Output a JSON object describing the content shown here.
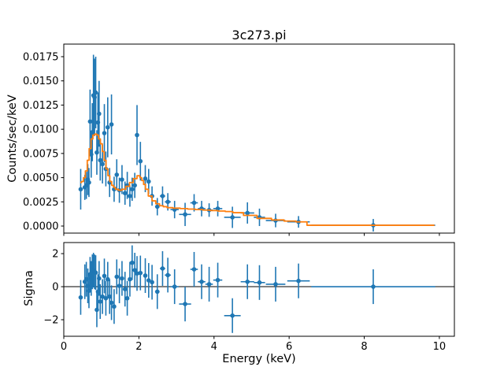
{
  "figure": {
    "title": "3c273.pi",
    "background": "#ffffff",
    "data_color": "#1f77b4",
    "model_color": "#ff7f0e",
    "axis_color": "#000000"
  },
  "chart_data": [
    {
      "type": "scatter",
      "title": "3c273.pi",
      "xlabel": "",
      "ylabel": "Counts/sec/keV",
      "xlim": [
        0,
        10.4
      ],
      "ylim": [
        -0.00073,
        0.0188
      ],
      "grid": false,
      "legend": "none",
      "xticks": [
        0,
        2,
        4,
        6,
        8,
        10
      ],
      "xtick_labels": [
        "0",
        "2",
        "4",
        "6",
        "8",
        "10"
      ],
      "show_xtick_labels": false,
      "yticks": [
        0.0,
        0.0025,
        0.005,
        0.0075,
        0.01,
        0.0125,
        0.015,
        0.0175
      ],
      "ytick_labels": [
        "0.0000",
        "0.0025",
        "0.0050",
        "0.0075",
        "0.0100",
        "0.0125",
        "0.0150",
        "0.0175"
      ],
      "series": [
        {
          "name": "spectrum-data",
          "kind": "errorbar",
          "color": "#1f77b4",
          "marker": "circle",
          "point_format": [
            "x",
            "y",
            "yerr",
            "xerr"
          ],
          "points": [
            [
              0.45,
              0.0038,
              0.0021,
              0.015
            ],
            [
              0.56,
              0.004,
              0.0013,
              0.015
            ],
            [
              0.6,
              0.0042,
              0.0014,
              0.015
            ],
            [
              0.64,
              0.0048,
              0.0016,
              0.015
            ],
            [
              0.67,
              0.0045,
              0.0015,
              0.015
            ],
            [
              0.7,
              0.0108,
              0.0033,
              0.015
            ],
            [
              0.73,
              0.0074,
              0.0024,
              0.015
            ],
            [
              0.76,
              0.0097,
              0.003,
              0.015
            ],
            [
              0.79,
              0.0135,
              0.0042,
              0.015
            ],
            [
              0.82,
              0.0133,
              0.004,
              0.015
            ],
            [
              0.85,
              0.0138,
              0.0037,
              0.015
            ],
            [
              0.88,
              0.0076,
              0.0023,
              0.015
            ],
            [
              0.91,
              0.0107,
              0.0031,
              0.015
            ],
            [
              0.94,
              0.0116,
              0.0034,
              0.015
            ],
            [
              0.97,
              0.0068,
              0.0021,
              0.015
            ],
            [
              1.03,
              0.0064,
              0.002,
              0.02
            ],
            [
              1.08,
              0.0096,
              0.003,
              0.02
            ],
            [
              1.12,
              0.0059,
              0.0018,
              0.02
            ],
            [
              1.17,
              0.0102,
              0.0031,
              0.02
            ],
            [
              1.22,
              0.0045,
              0.0015,
              0.02
            ],
            [
              1.27,
              0.0105,
              0.0031,
              0.02
            ],
            [
              1.34,
              0.0038,
              0.0013,
              0.025
            ],
            [
              1.41,
              0.0053,
              0.0016,
              0.025
            ],
            [
              1.48,
              0.0037,
              0.0013,
              0.025
            ],
            [
              1.55,
              0.0048,
              0.0015,
              0.025
            ],
            [
              1.63,
              0.0034,
              0.0012,
              0.025
            ],
            [
              1.69,
              0.0042,
              0.0014,
              0.025
            ],
            [
              1.76,
              0.0031,
              0.0011,
              0.03
            ],
            [
              1.82,
              0.0038,
              0.0012,
              0.03
            ],
            [
              1.89,
              0.0042,
              0.0013,
              0.03
            ],
            [
              1.95,
              0.0094,
              0.0031,
              0.03
            ],
            [
              2.04,
              0.0067,
              0.002,
              0.04
            ],
            [
              2.17,
              0.0049,
              0.0014,
              0.04
            ],
            [
              2.26,
              0.0046,
              0.0013,
              0.045
            ],
            [
              2.35,
              0.0031,
              0.001,
              0.05
            ],
            [
              2.49,
              0.002,
              0.0009,
              0.06
            ],
            [
              2.63,
              0.0031,
              0.001,
              0.07
            ],
            [
              2.77,
              0.0025,
              0.0009,
              0.08
            ],
            [
              2.95,
              0.0017,
              0.0009,
              0.11
            ],
            [
              3.23,
              0.0012,
              0.0012,
              0.16
            ],
            [
              3.47,
              0.0024,
              0.0009,
              0.1
            ],
            [
              3.67,
              0.0018,
              0.0008,
              0.1
            ],
            [
              3.87,
              0.00165,
              0.0007,
              0.1
            ],
            [
              4.1,
              0.0018,
              0.0008,
              0.12
            ],
            [
              4.49,
              0.0009,
              0.0011,
              0.22
            ],
            [
              4.89,
              0.00135,
              0.0011,
              0.18
            ],
            [
              5.21,
              0.0009,
              0.0009,
              0.15
            ],
            [
              5.64,
              0.00057,
              0.0007,
              0.26
            ],
            [
              6.25,
              0.00043,
              0.0006,
              0.3
            ],
            [
              8.24,
              8e-05,
              0.00065,
              1.65
            ]
          ]
        },
        {
          "name": "model-fit",
          "kind": "step-line",
          "color": "#ff7f0e",
          "x": [
            0.44,
            0.5,
            0.55,
            0.6,
            0.65,
            0.7,
            0.75,
            0.8,
            0.85,
            0.9,
            0.95,
            1.0,
            1.05,
            1.1,
            1.15,
            1.2,
            1.25,
            1.3,
            1.35,
            1.4,
            1.5,
            1.6,
            1.7,
            1.8,
            1.9,
            2.0,
            2.05,
            2.1,
            2.15,
            2.2,
            2.3,
            2.4,
            2.5,
            2.6,
            2.7,
            2.8,
            3.0,
            3.2,
            3.4,
            3.6,
            3.8,
            4.0,
            4.2,
            4.4,
            4.6,
            4.97,
            5.32,
            5.74,
            5.99,
            6.37,
            6.58,
            9.87
          ],
          "y": [
            0.0045,
            0.0046,
            0.005,
            0.0057,
            0.0068,
            0.008,
            0.009,
            0.0094,
            0.0095,
            0.0094,
            0.009,
            0.0085,
            0.0077,
            0.0068,
            0.0059,
            0.0052,
            0.0046,
            0.0042,
            0.004,
            0.0038,
            0.0037,
            0.0038,
            0.0041,
            0.0045,
            0.0049,
            0.0052,
            0.005,
            0.0047,
            0.0043,
            0.0038,
            0.0031,
            0.0026,
            0.0023,
            0.0021,
            0.002,
            0.0019,
            0.00185,
            0.0018,
            0.00175,
            0.0017,
            0.00165,
            0.0016,
            0.00155,
            0.0015,
            0.00138,
            0.0011,
            0.00079,
            0.00063,
            0.00051,
            0.00043,
            8e-05,
            8e-05
          ]
        }
      ]
    },
    {
      "type": "scatter",
      "title": "",
      "xlabel": "Energy (keV)",
      "ylabel": "Sigma",
      "xlim": [
        0,
        10.4
      ],
      "ylim": [
        -3.0,
        2.67
      ],
      "grid": false,
      "legend": "none",
      "zero_line": true,
      "xticks": [
        0,
        2,
        4,
        6,
        8,
        10
      ],
      "xtick_labels": [
        "0",
        "2",
        "4",
        "6",
        "8",
        "10"
      ],
      "show_xtick_labels": true,
      "yticks": [
        -2,
        0,
        2
      ],
      "ytick_labels": [
        "−2",
        "0",
        "2"
      ],
      "series": [
        {
          "name": "residuals",
          "kind": "errorbar",
          "color": "#1f77b4",
          "marker": "circle",
          "point_format": [
            "x",
            "y",
            "yerr",
            "xerr"
          ],
          "points": [
            [
              0.45,
              -0.65,
              1.05,
              0.015
            ],
            [
              0.56,
              0.3,
              1.05,
              0.015
            ],
            [
              0.6,
              0.45,
              1.05,
              0.015
            ],
            [
              0.64,
              0.05,
              1.05,
              0.015
            ],
            [
              0.67,
              -0.25,
              1.05,
              0.015
            ],
            [
              0.7,
              0.75,
              1.05,
              0.015
            ],
            [
              0.73,
              0.5,
              1.05,
              0.015
            ],
            [
              0.76,
              0.9,
              1.05,
              0.015
            ],
            [
              0.79,
              1.0,
              1.05,
              0.015
            ],
            [
              0.82,
              0.9,
              1.05,
              0.015
            ],
            [
              0.85,
              0.85,
              1.05,
              0.015
            ],
            [
              0.88,
              -1.4,
              1.05,
              0.015
            ],
            [
              0.91,
              -0.3,
              1.05,
              0.015
            ],
            [
              0.94,
              0.5,
              1.05,
              0.015
            ],
            [
              0.97,
              -0.9,
              1.05,
              0.015
            ],
            [
              1.03,
              -0.6,
              1.05,
              0.02
            ],
            [
              1.08,
              0.65,
              1.05,
              0.02
            ],
            [
              1.12,
              -0.7,
              1.05,
              0.02
            ],
            [
              1.17,
              0.45,
              1.05,
              0.02
            ],
            [
              1.22,
              -0.6,
              1.05,
              0.02
            ],
            [
              1.27,
              -0.97,
              1.05,
              0.02
            ],
            [
              1.34,
              -1.2,
              1.05,
              0.025
            ],
            [
              1.41,
              0.6,
              1.05,
              0.025
            ],
            [
              1.48,
              0.05,
              1.05,
              0.025
            ],
            [
              1.55,
              0.5,
              1.05,
              0.025
            ],
            [
              1.63,
              -0.15,
              1.05,
              0.025
            ],
            [
              1.69,
              -0.7,
              1.05,
              0.025
            ],
            [
              1.76,
              0.45,
              1.05,
              0.03
            ],
            [
              1.82,
              1.45,
              1.05,
              0.03
            ],
            [
              1.89,
              1.0,
              1.05,
              0.03
            ],
            [
              1.95,
              0.8,
              1.05,
              0.03
            ],
            [
              2.04,
              0.83,
              1.05,
              0.04
            ],
            [
              2.17,
              0.67,
              1.05,
              0.04
            ],
            [
              2.26,
              0.38,
              1.05,
              0.045
            ],
            [
              2.35,
              0.27,
              1.05,
              0.05
            ],
            [
              2.49,
              -0.3,
              1.05,
              0.06
            ],
            [
              2.63,
              1.1,
              1.05,
              0.07
            ],
            [
              2.77,
              0.7,
              1.05,
              0.08
            ],
            [
              2.95,
              0.0,
              1.05,
              0.11
            ],
            [
              3.23,
              -1.05,
              1.05,
              0.16
            ],
            [
              3.47,
              1.05,
              1.05,
              0.1
            ],
            [
              3.67,
              0.3,
              1.05,
              0.1
            ],
            [
              3.87,
              0.15,
              1.05,
              0.1
            ],
            [
              4.1,
              0.4,
              1.05,
              0.12
            ],
            [
              4.49,
              -1.75,
              1.05,
              0.22
            ],
            [
              4.89,
              0.3,
              1.05,
              0.18
            ],
            [
              5.21,
              0.25,
              1.05,
              0.15
            ],
            [
              5.64,
              0.15,
              1.05,
              0.26
            ],
            [
              6.25,
              0.35,
              1.05,
              0.3
            ],
            [
              8.24,
              0.0,
              1.05,
              1.65
            ]
          ]
        }
      ]
    }
  ]
}
